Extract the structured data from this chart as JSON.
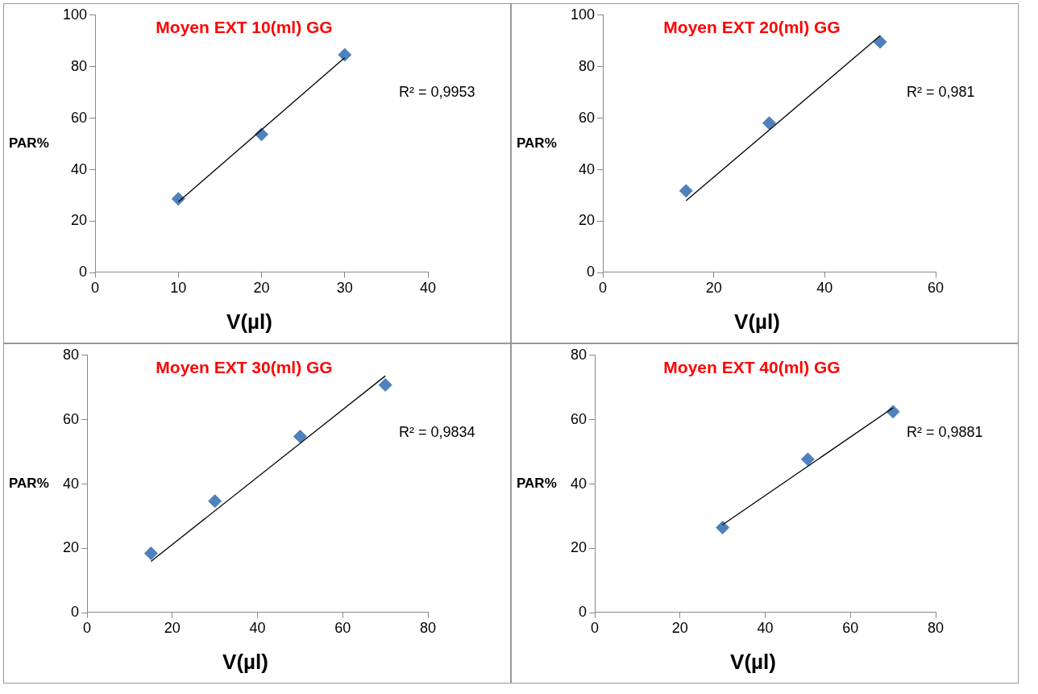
{
  "chart_data": [
    {
      "type": "scatter",
      "title": "Moyen EXT 10(ml) GG",
      "xlabel": "V(µl)",
      "ylabel": "PAR%",
      "xlim": [
        0,
        40
      ],
      "xticks": [
        0,
        10,
        20,
        30,
        40
      ],
      "ylim": [
        0,
        100
      ],
      "yticks": [
        0,
        20,
        40,
        60,
        80,
        100
      ],
      "grid": false,
      "legend": false,
      "marker": "diamond",
      "annotations": [
        "R² = 0,9953"
      ],
      "series": [
        {
          "color": "#4f81bd",
          "x": [
            10,
            20,
            30
          ],
          "values": [
            28.7,
            53.7,
            84.6
          ]
        },
        {
          "type": "line",
          "color": "#000000",
          "marker": "none",
          "x": [
            10,
            30
          ],
          "values": [
            27.5,
            83.5
          ]
        }
      ]
    },
    {
      "type": "scatter",
      "title": "Moyen EXT 20(ml) GG",
      "xlabel": "V(µl)",
      "ylabel": "PAR%",
      "xlim": [
        0,
        60
      ],
      "xticks": [
        0,
        20,
        40,
        60
      ],
      "ylim": [
        0,
        100
      ],
      "yticks": [
        0,
        20,
        40,
        60,
        80,
        100
      ],
      "grid": false,
      "legend": false,
      "marker": "diamond",
      "annotations": [
        "R² = 0,981"
      ],
      "series": [
        {
          "color": "#4f81bd",
          "x": [
            15,
            30,
            50
          ],
          "values": [
            31.8,
            58.1,
            89.6
          ]
        },
        {
          "type": "line",
          "color": "#000000",
          "marker": "none",
          "x": [
            15,
            50
          ],
          "values": [
            28,
            92
          ]
        }
      ]
    },
    {
      "type": "scatter",
      "title": "Moyen EXT 30(ml) GG",
      "xlabel": "V(µl)",
      "ylabel": "PAR%",
      "xlim": [
        0,
        80
      ],
      "xticks": [
        0,
        20,
        40,
        60,
        80
      ],
      "ylim": [
        0,
        80
      ],
      "yticks": [
        0,
        20,
        40,
        60,
        80
      ],
      "grid": false,
      "legend": false,
      "marker": "diamond",
      "annotations": [
        "R² = 0,9834"
      ],
      "series": [
        {
          "color": "#4f81bd",
          "x": [
            15,
            30,
            50,
            70
          ],
          "values": [
            18.5,
            34.7,
            54.8,
            70.8
          ]
        },
        {
          "type": "line",
          "color": "#000000",
          "marker": "none",
          "x": [
            15,
            70
          ],
          "values": [
            16,
            73.6
          ]
        }
      ]
    },
    {
      "type": "scatter",
      "title": "Moyen EXT 40(ml) GG",
      "xlabel": "V(µl)",
      "ylabel": "PAR%",
      "xlim": [
        0,
        80
      ],
      "xticks": [
        0,
        20,
        40,
        60,
        80
      ],
      "ylim": [
        0,
        80
      ],
      "yticks": [
        0,
        20,
        40,
        60,
        80
      ],
      "grid": false,
      "legend": false,
      "marker": "diamond",
      "annotations": [
        "R² = 0,9881"
      ],
      "series": [
        {
          "color": "#4f81bd",
          "x": [
            30,
            50,
            70
          ],
          "values": [
            26.5,
            47.7,
            62.5
          ]
        },
        {
          "type": "line",
          "color": "#000000",
          "marker": "none",
          "x": [
            30,
            70
          ],
          "values": [
            27.4,
            63.7
          ]
        }
      ]
    }
  ]
}
